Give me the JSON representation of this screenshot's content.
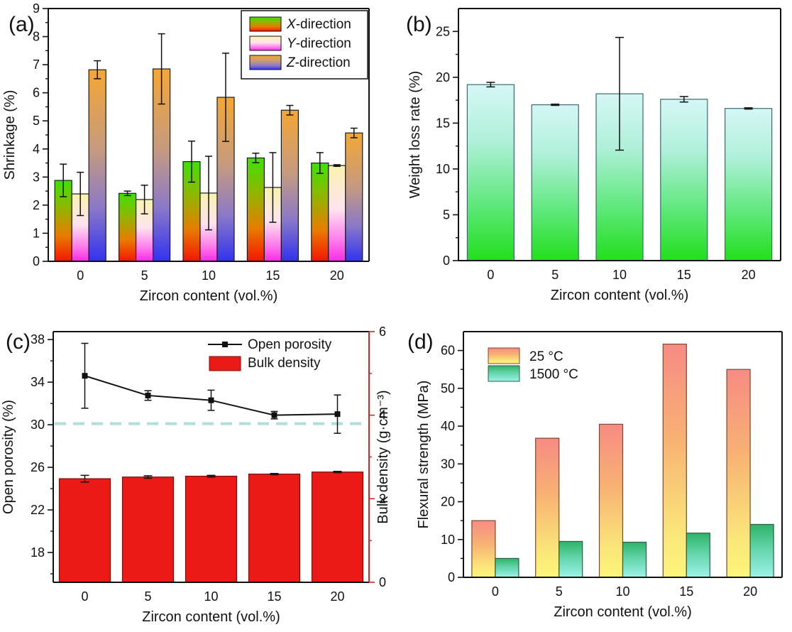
{
  "chart_data": [
    {
      "panel": "(a)",
      "type": "grouped_bar",
      "xlabel": "Zircon content (vol.%)",
      "ylabel": "Shrinkage (%)",
      "categories": [
        "0",
        "5",
        "10",
        "15",
        "20"
      ],
      "ylim": [
        0,
        9
      ],
      "ytick_step": 1,
      "yminor_step": 0.5,
      "legend_position": "top-right-boxed",
      "series": [
        {
          "name": "X-direction",
          "values": [
            2.88,
            2.42,
            3.55,
            3.68,
            3.5
          ],
          "errors": [
            0.58,
            0.08,
            0.73,
            0.17,
            0.37
          ],
          "gradient": [
            "#3ee202",
            "#93b400",
            "#e87c00",
            "#f51500"
          ],
          "offsets": [
            0,
            0.35,
            0.68,
            1
          ],
          "stroke": "#1a1a1a"
        },
        {
          "name": "Y-direction",
          "values": [
            2.4,
            2.2,
            2.43,
            2.63,
            3.41
          ],
          "errors": [
            0.77,
            0.51,
            1.31,
            1.24,
            0.03
          ],
          "gradient": [
            "#faf3ae",
            "#ffe4ef",
            "#fc7cec",
            "#fb2ae4"
          ],
          "offsets": [
            0,
            0.45,
            0.78,
            1
          ],
          "stroke": "#1a1a1a"
        },
        {
          "name": "Z-direction",
          "values": [
            6.82,
            6.85,
            5.84,
            5.38,
            4.57
          ],
          "errors": [
            0.32,
            1.25,
            1.57,
            0.17,
            0.17
          ],
          "gradient": [
            "#f4a733",
            "#c59a80",
            "#8b79c8",
            "#3232ef"
          ],
          "offsets": [
            0,
            0.42,
            0.72,
            1
          ],
          "stroke": "#1a1a1a"
        }
      ]
    },
    {
      "panel": "(b)",
      "type": "grouped_bar",
      "xlabel": "Zircon content (vol.%)",
      "ylabel": "Weight loss rate (%)",
      "categories": [
        "0",
        "5",
        "10",
        "15",
        "20"
      ],
      "ylim": [
        0,
        27.5
      ],
      "ytick_step": 5,
      "yminor_step": 2.5,
      "legend_position": "none",
      "series": [
        {
          "name": "Weight loss rate",
          "values": [
            19.2,
            17.0,
            18.2,
            17.6,
            16.6
          ],
          "errors": [
            0.25,
            0.07,
            6.15,
            0.3,
            0.07
          ],
          "gradient": [
            "#d5f7f5",
            "#b0f0da",
            "#5fe87c",
            "#22df1b"
          ],
          "offsets": [
            0,
            0.32,
            0.68,
            1
          ],
          "stroke": "#3c6a70"
        }
      ]
    },
    {
      "panel": "(c)",
      "type": "dual",
      "xlabel": "Zircon content (vol.%)",
      "categories": [
        "0",
        "5",
        "10",
        "15",
        "20"
      ],
      "left_axis": {
        "label": "Open porosity (%)",
        "min": 15.2,
        "max": 38.75,
        "ticks": [
          18,
          22,
          26,
          30,
          34,
          38
        ],
        "minor_step": 2,
        "color": "#111111"
      },
      "right_axis": {
        "label": "Bulk density (g·cm⁻³)",
        "min": 0,
        "max": 6,
        "ticks": [
          0,
          2,
          4,
          6
        ],
        "minor_step": 1,
        "color": "#d62420"
      },
      "bars": {
        "name": "Bulk density",
        "axis": "right",
        "values": [
          2.48,
          2.52,
          2.54,
          2.59,
          2.64
        ],
        "errors": [
          0.08,
          0.03,
          0.02,
          0.015,
          0.015
        ],
        "fill": "#ec1a17",
        "stroke": "#7a0e0b"
      },
      "line": {
        "name": "Open porosity",
        "axis": "left",
        "values": [
          34.6,
          32.75,
          32.3,
          30.9,
          31.0
        ],
        "errors": [
          3.05,
          0.45,
          0.95,
          0.35,
          1.8
        ],
        "color": "#111111"
      },
      "ref_line": {
        "axis": "left",
        "value": 30.1,
        "color": "#b2ded9",
        "style": "dashed"
      }
    },
    {
      "panel": "(d)",
      "type": "grouped_bar",
      "xlabel": "Zircon content (vol.%)",
      "ylabel": "Flexural strength (MPa)",
      "categories": [
        "0",
        "5",
        "10",
        "15",
        "20"
      ],
      "ylim": [
        0,
        65
      ],
      "ytick_step": 10,
      "yminor_step": 5,
      "legend_position": "top-left-plain",
      "series": [
        {
          "name": "25 °C",
          "values": [
            15,
            36.8,
            40.5,
            61.7,
            55
          ],
          "errors": null,
          "gradient": [
            "#f78b84",
            "#f7b173",
            "#fae779",
            "#fdf57b"
          ],
          "offsets": [
            0,
            0.4,
            0.82,
            1
          ],
          "stroke": "#7d4a2a"
        },
        {
          "name": "1500 °C",
          "values": [
            5,
            9.5,
            9.3,
            11.7,
            14
          ],
          "errors": null,
          "gradient": [
            "#2eb368",
            "#63d4a9",
            "#9cf3e8"
          ],
          "offsets": [
            0,
            0.45,
            1
          ],
          "stroke": "#2f5d49"
        }
      ]
    }
  ]
}
